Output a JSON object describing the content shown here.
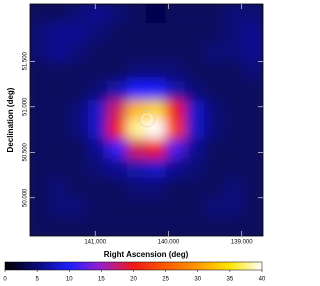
{
  "chart_data": {
    "type": "heatmap",
    "xlabel": "Right Ascension (deg)",
    "ylabel": "Declination (deg)",
    "xlim": [
      141.89,
      138.71
    ],
    "ylim": [
      49.58,
      52.13
    ],
    "xticks": [
      {
        "value": 141,
        "label": "141.000"
      },
      {
        "value": 140,
        "label": "140.000"
      },
      {
        "value": 139,
        "label": "139.000"
      }
    ],
    "yticks": [
      {
        "value": 50,
        "label": "50.000"
      },
      {
        "value": 50.5,
        "label": "50.500"
      },
      {
        "value": 51,
        "label": "51.000"
      },
      {
        "value": 51.5,
        "label": "51.500"
      }
    ],
    "z": [
      [
        4,
        4,
        5,
        6,
        5,
        4,
        3,
        4,
        4,
        4,
        5,
        5
      ],
      [
        5,
        6,
        6,
        5,
        4,
        4,
        4,
        4,
        4,
        4,
        5,
        6
      ],
      [
        5,
        6,
        5,
        4,
        4,
        4,
        4,
        4,
        4,
        5,
        5,
        6
      ],
      [
        4,
        4,
        4,
        4,
        4,
        5,
        5,
        5,
        4,
        4,
        4,
        5
      ],
      [
        4,
        4,
        4,
        5,
        7,
        10,
        10,
        7,
        5,
        4,
        4,
        4
      ],
      [
        4,
        4,
        5,
        8,
        18,
        32,
        34,
        20,
        8,
        5,
        4,
        4
      ],
      [
        4,
        4,
        5,
        8,
        20,
        38,
        40,
        22,
        8,
        5,
        4,
        4
      ],
      [
        4,
        4,
        4,
        6,
        11,
        18,
        20,
        12,
        6,
        4,
        4,
        4
      ],
      [
        4,
        4,
        4,
        5,
        6,
        7,
        8,
        6,
        5,
        4,
        4,
        4
      ],
      [
        4,
        5,
        4,
        4,
        4,
        5,
        5,
        4,
        4,
        4,
        5,
        4
      ],
      [
        4,
        5,
        5,
        4,
        4,
        4,
        4,
        4,
        4,
        5,
        5,
        4
      ],
      [
        4,
        4,
        4,
        4,
        4,
        4,
        4,
        4,
        4,
        4,
        4,
        4
      ]
    ],
    "zlim": [
      0,
      40
    ],
    "zticks": [
      0,
      5,
      10,
      15,
      20,
      25,
      30,
      35,
      40
    ],
    "colormap": [
      "#000000",
      "#0a0a78",
      "#1e1eff",
      "#9b20c8",
      "#f01818",
      "#ff5a00",
      "#ff9b00",
      "#ffe600",
      "#ffffff"
    ]
  }
}
